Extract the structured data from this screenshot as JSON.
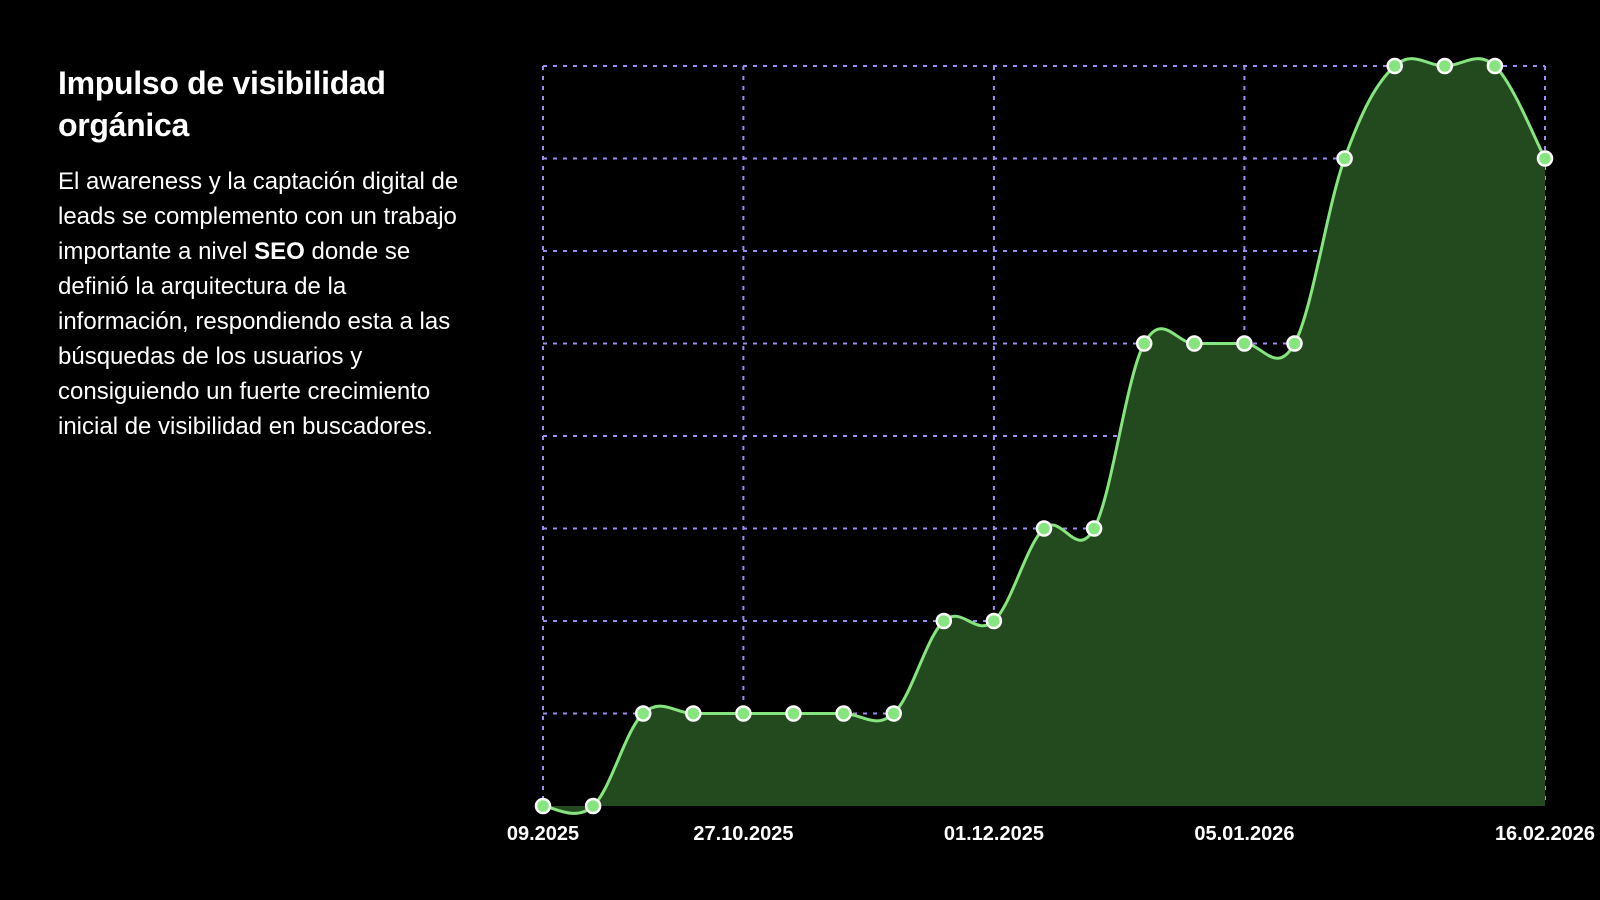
{
  "text_panel": {
    "title": "Impulso de visibilidad orgánica",
    "body_before": "El awareness y la captación digital de leads se complemento con un trabajo importante a nivel ",
    "body_bold": "SEO",
    "body_after": " donde se definió la arquitectura de la información, respondiendo esta a las búsquedas de los usuarios y consiguiendo un fuerte crecimiento inicial de visibilidad en buscadores."
  },
  "colors": {
    "background": "#000000",
    "line": "#86e57f",
    "area": "#23491f",
    "point": "#86e57f",
    "grid": "#9b8cf0",
    "text": "#ffffff"
  },
  "chart_data": {
    "type": "area",
    "title": "",
    "xlabel": "",
    "ylabel": "",
    "x_tick_labels": [
      "09.2025",
      "27.10.2025",
      "01.12.2025",
      "05.01.2026",
      "16.02.2026"
    ],
    "x": [
      0,
      1,
      2,
      3,
      4,
      5,
      6,
      7,
      8,
      9,
      10,
      11,
      12,
      13,
      14,
      15,
      16,
      17,
      18,
      19,
      20
    ],
    "values": [
      0,
      0,
      1,
      1,
      1,
      1,
      1,
      1,
      2,
      2,
      3,
      3,
      5,
      5,
      5,
      5,
      7,
      8,
      8,
      8,
      7
    ],
    "ylim": [
      0,
      8
    ],
    "grid": true,
    "y_tick_labels_shown": false,
    "legend": "none",
    "markers": true
  }
}
